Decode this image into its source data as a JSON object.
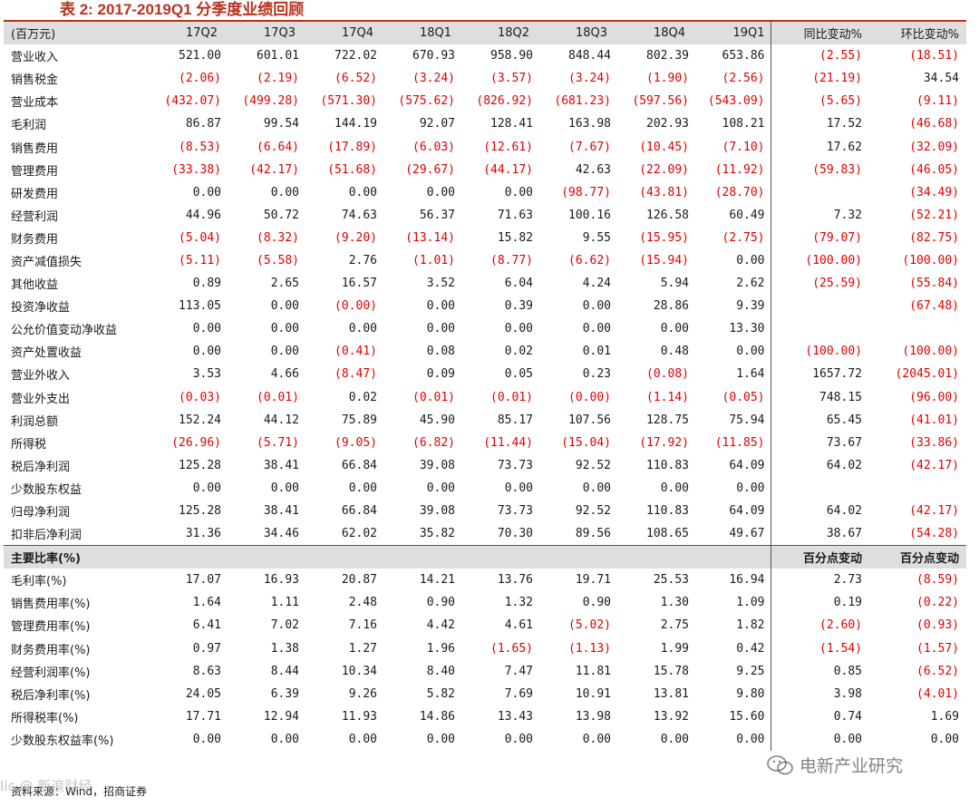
{
  "title": "表 2: 2017-2019Q1 分季度业绩回顾",
  "header": {
    "unit_label": "(百万元)",
    "quarters": [
      "17Q2",
      "17Q3",
      "17Q4",
      "18Q1",
      "18Q2",
      "18Q3",
      "18Q4",
      "19Q1"
    ],
    "change_cols": [
      "同比变动%",
      "环比变动%"
    ]
  },
  "rows": [
    {
      "label": "营业收入",
      "values": [
        "521.00",
        "601.01",
        "722.02",
        "670.93",
        "958.90",
        "848.44",
        "802.39",
        "653.86"
      ],
      "yoy": "(2.55)",
      "qoq": "(18.51)"
    },
    {
      "label": "销售税金",
      "values": [
        "(2.06)",
        "(2.19)",
        "(6.52)",
        "(3.24)",
        "(3.57)",
        "(3.24)",
        "(1.90)",
        "(2.56)"
      ],
      "yoy": "(21.19)",
      "qoq": "34.54"
    },
    {
      "label": "营业成本",
      "values": [
        "(432.07)",
        "(499.28)",
        "(571.30)",
        "(575.62)",
        "(826.92)",
        "(681.23)",
        "(597.56)",
        "(543.09)"
      ],
      "yoy": "(5.65)",
      "qoq": "(9.11)"
    },
    {
      "label": "毛利润",
      "values": [
        "86.87",
        "99.54",
        "144.19",
        "92.07",
        "128.41",
        "163.98",
        "202.93",
        "108.21"
      ],
      "yoy": "17.52",
      "qoq": "(46.68)"
    },
    {
      "label": "销售费用",
      "values": [
        "(8.53)",
        "(6.64)",
        "(17.89)",
        "(6.03)",
        "(12.61)",
        "(7.67)",
        "(10.45)",
        "(7.10)"
      ],
      "yoy": "17.62",
      "qoq": "(32.09)"
    },
    {
      "label": "管理费用",
      "values": [
        "(33.38)",
        "(42.17)",
        "(51.68)",
        "(29.67)",
        "(44.17)",
        "42.63",
        "(22.09)",
        "(11.92)"
      ],
      "yoy": "(59.83)",
      "qoq": "(46.05)"
    },
    {
      "label": "研发费用",
      "values": [
        "0.00",
        "0.00",
        "0.00",
        "0.00",
        "0.00",
        "(98.77)",
        "(43.81)",
        "(28.70)"
      ],
      "yoy": "",
      "qoq": "(34.49)"
    },
    {
      "label": "经营利润",
      "values": [
        "44.96",
        "50.72",
        "74.63",
        "56.37",
        "71.63",
        "100.16",
        "126.58",
        "60.49"
      ],
      "yoy": "7.32",
      "qoq": "(52.21)"
    },
    {
      "label": "财务费用",
      "values": [
        "(5.04)",
        "(8.32)",
        "(9.20)",
        "(13.14)",
        "15.82",
        "9.55",
        "(15.95)",
        "(2.75)"
      ],
      "yoy": "(79.07)",
      "qoq": "(82.75)"
    },
    {
      "label": "资产减值损失",
      "values": [
        "(5.11)",
        "(5.58)",
        "2.76",
        "(1.01)",
        "(8.77)",
        "(6.62)",
        "(15.94)",
        "0.00"
      ],
      "yoy": "(100.00)",
      "qoq": "(100.00)"
    },
    {
      "label": "其他收益",
      "values": [
        "0.89",
        "2.65",
        "16.57",
        "3.52",
        "6.04",
        "4.24",
        "5.94",
        "2.62"
      ],
      "yoy": "(25.59)",
      "qoq": "(55.84)"
    },
    {
      "label": "投资净收益",
      "values": [
        "113.05",
        "0.00",
        "(0.00)",
        "0.00",
        "0.39",
        "0.00",
        "28.86",
        "9.39"
      ],
      "yoy": "",
      "qoq": "(67.48)"
    },
    {
      "label": "公允价值变动净收益",
      "values": [
        "0.00",
        "0.00",
        "0.00",
        "0.00",
        "0.00",
        "0.00",
        "0.00",
        "13.30"
      ],
      "yoy": "",
      "qoq": ""
    },
    {
      "label": "资产处置收益",
      "values": [
        "0.00",
        "0.00",
        "(0.41)",
        "0.08",
        "0.02",
        "0.01",
        "0.48",
        "0.00"
      ],
      "yoy": "(100.00)",
      "qoq": "(100.00)"
    },
    {
      "label": "营业外收入",
      "values": [
        "3.53",
        "4.66",
        "(8.47)",
        "0.09",
        "0.05",
        "0.23",
        "(0.08)",
        "1.64"
      ],
      "yoy": "1657.72",
      "qoq": "(2045.01)"
    },
    {
      "label": "营业外支出",
      "values": [
        "(0.03)",
        "(0.01)",
        "0.02",
        "(0.01)",
        "(0.01)",
        "(0.00)",
        "(1.14)",
        "(0.05)"
      ],
      "yoy": "748.15",
      "qoq": "(96.00)"
    },
    {
      "label": "利润总额",
      "values": [
        "152.24",
        "44.12",
        "75.89",
        "45.90",
        "85.17",
        "107.56",
        "128.75",
        "75.94"
      ],
      "yoy": "65.45",
      "qoq": "(41.01)"
    },
    {
      "label": "所得税",
      "values": [
        "(26.96)",
        "(5.71)",
        "(9.05)",
        "(6.82)",
        "(11.44)",
        "(15.04)",
        "(17.92)",
        "(11.85)"
      ],
      "yoy": "73.67",
      "qoq": "(33.86)"
    },
    {
      "label": "税后净利润",
      "values": [
        "125.28",
        "38.41",
        "66.84",
        "39.08",
        "73.73",
        "92.52",
        "110.83",
        "64.09"
      ],
      "yoy": "64.02",
      "qoq": "(42.17)"
    },
    {
      "label": "少数股东权益",
      "values": [
        "0.00",
        "0.00",
        "0.00",
        "0.00",
        "0.00",
        "0.00",
        "0.00",
        "0.00"
      ],
      "yoy": "",
      "qoq": ""
    },
    {
      "label": "归母净利润",
      "values": [
        "125.28",
        "38.41",
        "66.84",
        "39.08",
        "73.73",
        "92.52",
        "110.83",
        "64.09"
      ],
      "yoy": "64.02",
      "qoq": "(42.17)"
    },
    {
      "label": "扣非后净利润",
      "values": [
        "31.36",
        "34.46",
        "62.02",
        "35.82",
        "70.30",
        "89.56",
        "108.65",
        "49.67"
      ],
      "yoy": "38.67",
      "qoq": "(54.28)"
    }
  ],
  "ratio_header": {
    "label": "主要比率(%)",
    "change_cols": [
      "百分点变动",
      "百分点变动"
    ]
  },
  "ratio_rows": [
    {
      "label": "毛利率(%)",
      "values": [
        "17.07",
        "16.93",
        "20.87",
        "14.21",
        "13.76",
        "19.71",
        "25.53",
        "16.94"
      ],
      "yoy": "2.73",
      "qoq": "(8.59)"
    },
    {
      "label": "销售费用率(%)",
      "values": [
        "1.64",
        "1.11",
        "2.48",
        "0.90",
        "1.32",
        "0.90",
        "1.30",
        "1.09"
      ],
      "yoy": "0.19",
      "qoq": "(0.22)"
    },
    {
      "label": "管理费用率(%)",
      "values": [
        "6.41",
        "7.02",
        "7.16",
        "4.42",
        "4.61",
        "(5.02)",
        "2.75",
        "1.82"
      ],
      "yoy": "(2.60)",
      "qoq": "(0.93)"
    },
    {
      "label": "财务费用率(%)",
      "values": [
        "0.97",
        "1.38",
        "1.27",
        "1.96",
        "(1.65)",
        "(1.13)",
        "1.99",
        "0.42"
      ],
      "yoy": "(1.54)",
      "qoq": "(1.57)"
    },
    {
      "label": "经营利润率(%)",
      "values": [
        "8.63",
        "8.44",
        "10.34",
        "8.40",
        "7.47",
        "11.81",
        "15.78",
        "9.25"
      ],
      "yoy": "0.85",
      "qoq": "(6.52)"
    },
    {
      "label": "税后净利率(%)",
      "values": [
        "24.05",
        "6.39",
        "9.26",
        "5.82",
        "7.69",
        "10.91",
        "13.81",
        "9.80"
      ],
      "yoy": "3.98",
      "qoq": "(4.01)"
    },
    {
      "label": "所得税率(%)",
      "values": [
        "17.71",
        "12.94",
        "11.93",
        "14.86",
        "13.43",
        "13.98",
        "13.92",
        "15.60"
      ],
      "yoy": "0.74",
      "qoq": "1.69"
    },
    {
      "label": "少数股东权益率(%)",
      "values": [
        "0.00",
        "0.00",
        "0.00",
        "0.00",
        "0.00",
        "0.00",
        "0.00",
        "0.00"
      ],
      "yoy": "0.00",
      "qoq": "0.00"
    }
  ],
  "source": "资料来源：Wind，招商证券",
  "watermarks": {
    "left": "Iic @ 新浪财经",
    "right": "电新产业研究"
  },
  "colors": {
    "accent": "#b8331f",
    "negative": "#e00000",
    "header_bg": "#dedede"
  },
  "icons": {
    "wechat": "wechat-icon"
  }
}
